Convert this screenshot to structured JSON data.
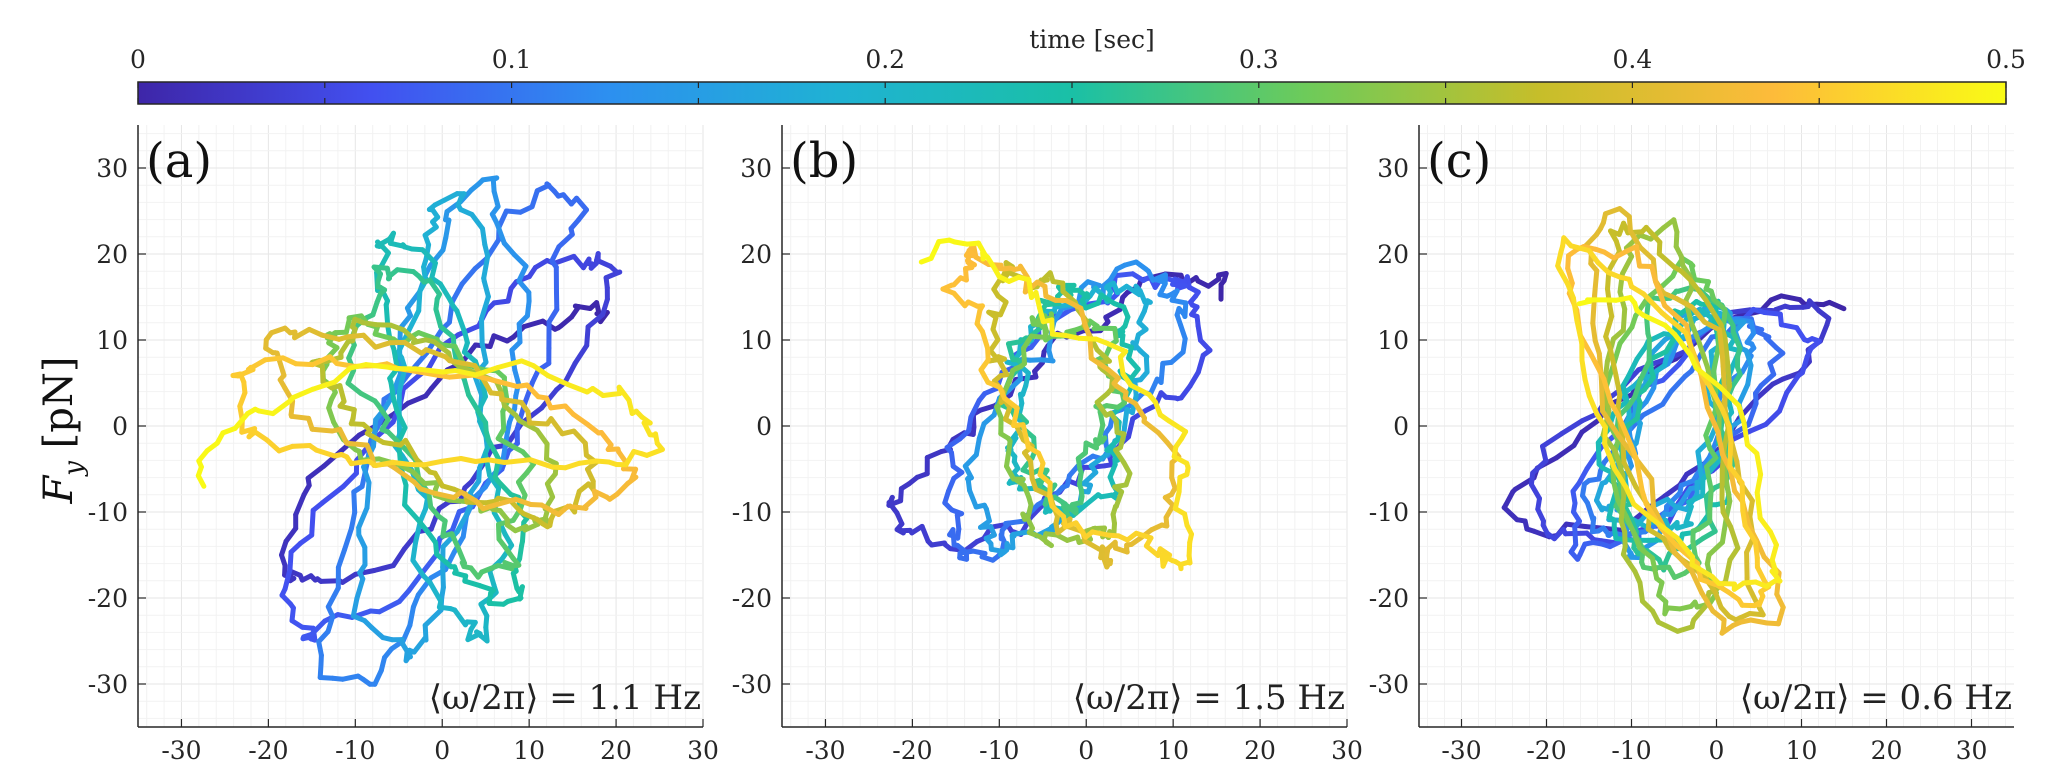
{
  "chart_data": {
    "type": "scatter",
    "colorbar": {
      "title": "time [sec]",
      "ticks": [
        "0",
        "0.1",
        "0.2",
        "0.3",
        "0.4",
        "0.5"
      ],
      "tick_values": [
        0,
        0.1,
        0.2,
        0.3,
        0.4,
        0.5
      ],
      "range": [
        0,
        0.5
      ],
      "colormap": "parula",
      "colors": [
        "#3e26a8",
        "#4250f0",
        "#2d8ff0",
        "#1fb2d3",
        "#1ac0a6",
        "#6dcb5a",
        "#c6be2a",
        "#fdbb3a",
        "#f9fb15"
      ]
    },
    "ylabel_main": "F",
    "ylabel_sub": "y",
    "ylabel_unit": "[pN]",
    "panels": [
      {
        "label": "(a)",
        "freq_text": "⟨ω/2π⟩ = 1.1 Hz",
        "freq_hz": 1.1,
        "xlim": [
          -35,
          30
        ],
        "ylim": [
          -35,
          35
        ],
        "xticks": [
          -30,
          -20,
          -10,
          0,
          10,
          20,
          30
        ],
        "xtick_labels": [
          "-30",
          "-20",
          "-10",
          "0",
          "10",
          "20",
          "30"
        ],
        "yticks": [
          -30,
          -20,
          -10,
          0,
          10,
          20,
          30
        ],
        "ytick_labels": [
          "-30",
          "-20",
          "-10",
          "0",
          "10",
          "20",
          "30"
        ],
        "trajectory": {
          "type": "rotating-ellipse",
          "petals": 11,
          "major": 27,
          "minor": 6,
          "turns": 0.85,
          "center": [
            0,
            0
          ]
        }
      },
      {
        "label": "(b)",
        "freq_text": "⟨ω/2π⟩ = 1.5 Hz",
        "freq_hz": 1.5,
        "xlim": [
          -35,
          30
        ],
        "ylim": [
          -35,
          35
        ],
        "xticks": [
          -30,
          -20,
          -10,
          0,
          10,
          20,
          30
        ],
        "xtick_labels": [
          "-30",
          "-20",
          "-10",
          "0",
          "10",
          "20",
          "30"
        ],
        "yticks": [
          -30,
          -20,
          -10,
          0,
          10,
          20,
          30
        ],
        "ytick_labels": [
          "-30",
          "-20",
          "-10",
          "0",
          "10",
          "20",
          "30"
        ],
        "trajectory": {
          "type": "rotating-ellipse",
          "petals": 8,
          "major": 20,
          "minor": 7,
          "turns": 0.55,
          "center": [
            -2,
            2
          ]
        }
      },
      {
        "label": "(c)",
        "freq_text": "⟨ω/2π⟩ = 0.6 Hz",
        "freq_hz": 0.6,
        "xlim": [
          -35,
          35
        ],
        "ylim": [
          -35,
          35
        ],
        "xticks": [
          -30,
          -20,
          -10,
          0,
          10,
          20,
          30
        ],
        "xtick_labels": [
          "-30",
          "-20",
          "-10",
          "0",
          "10",
          "20",
          "30"
        ],
        "yticks": [
          -30,
          -20,
          -10,
          0,
          10,
          20,
          30
        ],
        "ytick_labels": [
          "-30",
          "-20",
          "-10",
          "0",
          "10",
          "20",
          "30"
        ],
        "trajectory": {
          "type": "rotating-ellipse",
          "petals": 16,
          "major": 22,
          "minor": 6,
          "turns": 0.5,
          "center": [
            -5,
            0
          ]
        }
      }
    ]
  }
}
